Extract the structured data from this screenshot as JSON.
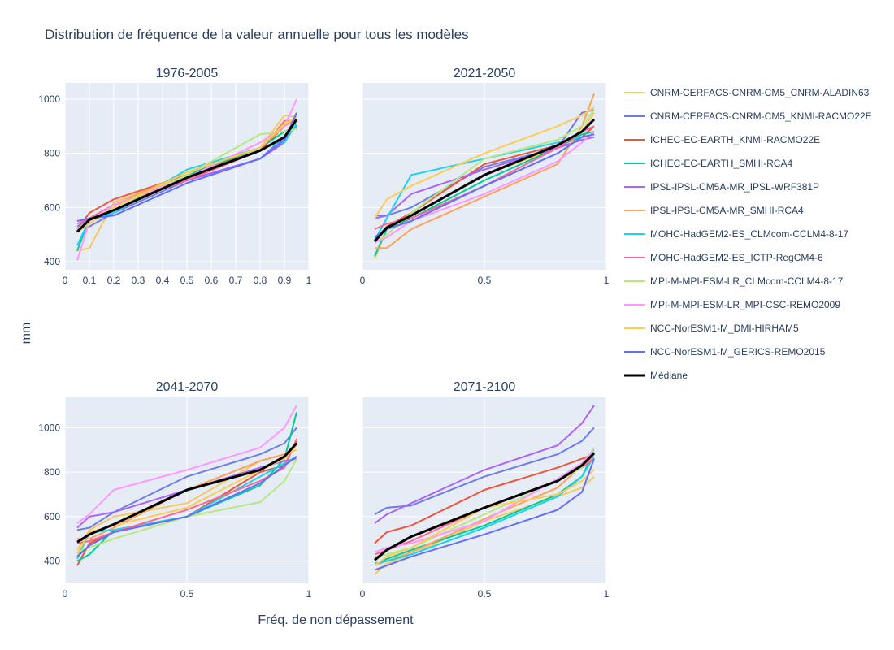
{
  "page": {
    "title": "Distribution de fréquence de la valeur annuelle pour tous les modèles"
  },
  "chart_data": {
    "type": "line",
    "title": "Distribution de fréquence de la valeur annuelle pour tous les modèles",
    "xlabel": "Fréq. de non dépassement",
    "ylabel": "mm",
    "x": [
      0.05,
      0.1,
      0.2,
      0.5,
      0.8,
      0.9,
      0.95
    ],
    "series_meta": [
      {
        "name": "CNRM-CERFACS-CNRM-CM5_CNRM-ALADIN63",
        "color": "#f6c85f"
      },
      {
        "name": "CNRM-CERFACS-CNRM-CM5_KNMI-RACMO22E",
        "color": "#6f7ce8"
      },
      {
        "name": "ICHEC-EC-EARTH_KNMI-RACMO22E",
        "color": "#ef553b"
      },
      {
        "name": "ICHEC-EC-EARTH_SMHI-RCA4",
        "color": "#00cc96"
      },
      {
        "name": "IPSL-IPSL-CM5A-MR_IPSL-WRF381P",
        "color": "#ab63fa"
      },
      {
        "name": "IPSL-IPSL-CM5A-MR_SMHI-RCA4",
        "color": "#ffa15a"
      },
      {
        "name": "MOHC-HadGEM2-ES_CLMcom-CCLM4-8-17",
        "color": "#19d3f3"
      },
      {
        "name": "MOHC-HadGEM2-ES_ICTP-RegCM4-6",
        "color": "#ff6692"
      },
      {
        "name": "MPI-M-MPI-ESM-LR_CLMcom-CCLM4-8-17",
        "color": "#b6e880"
      },
      {
        "name": "MPI-M-MPI-ESM-LR_MPI-CSC-REMO2009",
        "color": "#ff97ff"
      },
      {
        "name": "NCC-NorESM1-M_DMI-HIRHAM5",
        "color": "#fecb52"
      },
      {
        "name": "NCC-NorESM1-M_GERICS-REMO2015",
        "color": "#636efa"
      },
      {
        "name": "Médiane",
        "color": "#000000"
      }
    ],
    "subplots": [
      {
        "title": "1976-2005",
        "xlim": [
          0,
          1
        ],
        "ylim": [
          370,
          1060
        ],
        "xticks": [
          0,
          0.1,
          0.2,
          0.3,
          0.4,
          0.5,
          0.6,
          0.7,
          0.8,
          0.9,
          1
        ],
        "xtick_labels": [
          "0",
          "0.1",
          "0.2",
          "0.3",
          "0.4",
          "0.5",
          "0.6",
          "0.7",
          "0.8",
          "0.9",
          "1"
        ],
        "yticks": [
          400,
          600,
          800,
          1000
        ],
        "ytick_labels": [
          "400",
          "600",
          "800",
          "1000"
        ],
        "series": [
          [
            440,
            450,
            620,
            720,
            820,
            940,
            935
          ],
          [
            520,
            530,
            580,
            700,
            780,
            860,
            900
          ],
          [
            520,
            580,
            630,
            720,
            810,
            900,
            930
          ],
          [
            440,
            560,
            590,
            720,
            820,
            880,
            900
          ],
          [
            530,
            560,
            610,
            700,
            780,
            840,
            950
          ],
          [
            510,
            550,
            610,
            730,
            820,
            900,
            930
          ],
          [
            460,
            555,
            580,
            740,
            820,
            840,
            910
          ],
          [
            540,
            560,
            610,
            700,
            810,
            920,
            920
          ],
          [
            520,
            555,
            600,
            720,
            870,
            880,
            890
          ],
          [
            405,
            550,
            610,
            710,
            840,
            900,
            1000
          ],
          [
            510,
            540,
            600,
            730,
            820,
            910,
            930
          ],
          [
            550,
            560,
            570,
            690,
            780,
            850,
            950
          ],
          [
            510,
            555,
            590,
            710,
            810,
            860,
            925
          ]
        ]
      },
      {
        "title": "2021-2050",
        "xlim": [
          0,
          1
        ],
        "ylim": [
          370,
          1060
        ],
        "xticks": [
          0,
          0.5,
          1
        ],
        "xtick_labels": [
          "0",
          "0.5",
          "1"
        ],
        "yticks": [
          400,
          600,
          800,
          1000
        ],
        "ytick_labels": [
          "",
          "",
          "",
          ""
        ],
        "series": [
          [
            410,
            520,
            570,
            720,
            820,
            880,
            950
          ],
          [
            570,
            570,
            600,
            750,
            820,
            950,
            960
          ],
          [
            480,
            530,
            580,
            760,
            830,
            860,
            900
          ],
          [
            420,
            520,
            560,
            700,
            820,
            870,
            880
          ],
          [
            560,
            570,
            650,
            740,
            820,
            850,
            860
          ],
          [
            450,
            450,
            520,
            640,
            760,
            900,
            1020
          ],
          [
            480,
            560,
            720,
            780,
            840,
            860,
            870
          ],
          [
            520,
            540,
            560,
            680,
            820,
            880,
            900
          ],
          [
            470,
            500,
            580,
            780,
            850,
            900,
            960
          ],
          [
            470,
            490,
            550,
            650,
            770,
            840,
            880
          ],
          [
            560,
            630,
            680,
            800,
            900,
            940,
            970
          ],
          [
            490,
            520,
            550,
            680,
            800,
            860,
            870
          ],
          [
            475,
            525,
            570,
            720,
            830,
            880,
            925
          ]
        ]
      },
      {
        "title": "2041-2070",
        "xlim": [
          0,
          1
        ],
        "ylim": [
          300,
          1140
        ],
        "xticks": [
          0,
          0.5,
          1
        ],
        "xtick_labels": [
          "0",
          "0.5",
          "1"
        ],
        "yticks": [
          400,
          600,
          800,
          1000
        ],
        "ytick_labels": [
          "400",
          "600",
          "800",
          "1000"
        ],
        "series": [
          [
            450,
            540,
            600,
            660,
            850,
            880,
            900
          ],
          [
            540,
            550,
            620,
            780,
            880,
            930,
            1000
          ],
          [
            380,
            480,
            530,
            600,
            800,
            830,
            940
          ],
          [
            400,
            430,
            540,
            600,
            740,
            860,
            1070
          ],
          [
            550,
            600,
            620,
            720,
            820,
            850,
            860
          ],
          [
            500,
            500,
            550,
            720,
            850,
            880,
            920
          ],
          [
            410,
            530,
            540,
            600,
            780,
            840,
            870
          ],
          [
            480,
            490,
            530,
            630,
            760,
            820,
            950
          ],
          [
            440,
            460,
            500,
            600,
            665,
            760,
            860
          ],
          [
            570,
            610,
            720,
            810,
            910,
            1000,
            1100
          ],
          [
            430,
            530,
            560,
            640,
            810,
            860,
            920
          ],
          [
            420,
            470,
            530,
            600,
            750,
            830,
            870
          ],
          [
            485,
            520,
            565,
            720,
            810,
            870,
            930
          ]
        ]
      },
      {
        "title": "2071-2100",
        "xlim": [
          0,
          1
        ],
        "ylim": [
          300,
          1140
        ],
        "xticks": [
          0,
          0.5,
          1
        ],
        "xtick_labels": [
          "0",
          "0.5",
          "1"
        ],
        "yticks": [
          400,
          600,
          800,
          1000
        ],
        "ytick_labels": [
          "",
          "",
          "",
          ""
        ],
        "series": [
          [
            340,
            390,
            430,
            580,
            690,
            730,
            780
          ],
          [
            610,
            640,
            650,
            780,
            880,
            940,
            1000
          ],
          [
            480,
            530,
            560,
            720,
            820,
            860,
            880
          ],
          [
            380,
            410,
            450,
            560,
            700,
            780,
            890
          ],
          [
            570,
            610,
            660,
            810,
            920,
            1020,
            1100
          ],
          [
            380,
            400,
            440,
            590,
            730,
            830,
            870
          ],
          [
            390,
            400,
            430,
            550,
            690,
            780,
            870
          ],
          [
            430,
            450,
            490,
            640,
            760,
            820,
            860
          ],
          [
            420,
            430,
            460,
            610,
            760,
            820,
            910
          ],
          [
            440,
            460,
            480,
            580,
            770,
            840,
            900
          ],
          [
            380,
            420,
            460,
            640,
            700,
            760,
            810
          ],
          [
            360,
            380,
            420,
            520,
            630,
            710,
            860
          ],
          [
            405,
            450,
            510,
            640,
            760,
            830,
            885
          ]
        ]
      }
    ]
  }
}
